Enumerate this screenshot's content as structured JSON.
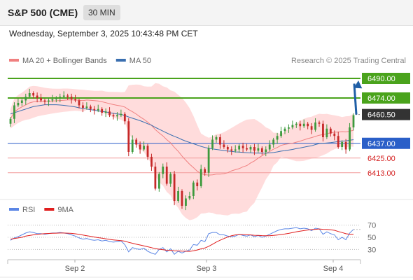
{
  "header": {
    "title": "S&P 500 (CME)",
    "interval": "30 MIN"
  },
  "datetime": "Wednesday, September 3, 2025 10:43:48 PM CET",
  "credit": "Research © 2025 Trading Central",
  "colors": {
    "up": "#3d9a3d",
    "down": "#c62828",
    "ma20": "#f08080",
    "ma50": "#3a6fb0",
    "band": "#ffd6d6",
    "green_line": "#4aa31c",
    "blue_line": "#2a5fc8",
    "red_line": "#f29c9c",
    "rsi": "#5b86e5",
    "rsi_ma": "#e01e1e",
    "arrow": "#1f5fa6"
  },
  "chart_data": [
    {
      "type": "candlestick",
      "legend": [
        {
          "label": "MA 20 + Bollinger Bands",
          "color": "#f08080"
        },
        {
          "label": "MA 50",
          "color": "#3a6fb0"
        }
      ],
      "x_ticks": [
        "Sep 2",
        "Sep 3",
        "Sep 4"
      ],
      "y_range": [
        6394,
        6498
      ],
      "levels": [
        {
          "label": "6490.00",
          "value": 6490.0,
          "kind": "resistance"
        },
        {
          "label": "6474.00",
          "value": 6474.0,
          "kind": "resistance"
        },
        {
          "label": "6460.50",
          "value": 6460.5,
          "kind": "last"
        },
        {
          "label": "6437.00",
          "value": 6437.0,
          "kind": "pivot"
        },
        {
          "label": "6425.00",
          "value": 6425.0,
          "kind": "support"
        },
        {
          "label": "6413.00",
          "value": 6413.0,
          "kind": "support"
        }
      ],
      "forecast_arrow": {
        "from": 6460.5,
        "to": 6490.0
      },
      "closes": [
        6457,
        6468,
        6470,
        6472,
        6475,
        6478,
        6476,
        6474,
        6472,
        6471,
        6472,
        6473,
        6474,
        6475,
        6476,
        6475,
        6473,
        6472,
        6468,
        6466,
        6467,
        6465,
        6464,
        6465,
        6462,
        6463,
        6460,
        6459,
        6460,
        6461,
        6455,
        6430,
        6440,
        6436,
        6432,
        6435,
        6426,
        6418,
        6400,
        6412,
        6418,
        6404,
        6412,
        6390,
        6398,
        6386,
        6392,
        6394,
        6405,
        6402,
        6416,
        6413,
        6433,
        6440,
        6442,
        6436,
        6434,
        6432,
        6431,
        6432,
        6435,
        6433,
        6432,
        6434,
        6431,
        6433,
        6430,
        6432,
        6436,
        6440,
        6443,
        6447,
        6449,
        6450,
        6452,
        6453,
        6451,
        6453,
        6451,
        6448,
        6454,
        6453,
        6442,
        6449,
        6445,
        6443,
        6434,
        6438,
        6432,
        6450,
        6460
      ],
      "ma50": [
        6461,
        6462,
        6463,
        6464,
        6465,
        6466,
        6467,
        6467.5,
        6468,
        6468.5,
        6468.5,
        6468.5,
        6468.5,
        6468.3,
        6468,
        6467.6,
        6467.2,
        6466.7,
        6466,
        6465.5,
        6465,
        6464.5,
        6464,
        6463.5,
        6463,
        6462.6,
        6462,
        6461.5,
        6461,
        6460.6,
        6459.7,
        6458.5,
        6457.5,
        6456.5,
        6455.5,
        6454.3,
        6453,
        6451.8,
        6450,
        6448.5,
        6447,
        6445.5,
        6444,
        6442.7,
        6441.5,
        6440,
        6438.8,
        6437.7,
        6436.6,
        6435.6,
        6434.5,
        6433.6,
        6433,
        6432.4,
        6432,
        6431.6,
        6431.1,
        6430.7,
        6430.4,
        6430,
        6429.8,
        6429.6,
        6429.4,
        6429.2,
        6429.1,
        6429,
        6429,
        6429,
        6429.2,
        6429.5,
        6430,
        6430.6,
        6431,
        6431.5,
        6432,
        6432.7,
        6433.2,
        6433.9,
        6434.5,
        6435,
        6436,
        6436.8,
        6437,
        6437.3,
        6437.6,
        6438,
        6438.4,
        6438.8,
        6439,
        6439.5,
        6440
      ]
    },
    {
      "type": "line",
      "legend": [
        {
          "label": "RSI",
          "color": "#5b86e5"
        },
        {
          "label": "9MA",
          "color": "#e01e1e"
        }
      ],
      "y_ticks": [
        70,
        50,
        30
      ],
      "y_range": [
        20,
        80
      ],
      "series": [
        {
          "name": "RSI",
          "values": [
            45,
            49,
            51,
            54,
            57,
            59,
            58,
            56,
            56,
            55,
            56,
            57,
            57,
            58,
            57,
            56,
            54,
            52,
            49,
            47,
            48,
            46,
            45,
            46,
            44,
            45,
            43,
            42,
            43,
            44,
            38,
            26,
            33,
            31,
            30,
            32,
            27,
            24,
            22,
            30,
            33,
            26,
            31,
            22,
            27,
            24,
            27,
            29,
            38,
            37,
            45,
            43,
            56,
            58,
            58,
            54,
            54,
            52,
            51,
            52,
            55,
            53,
            52,
            54,
            51,
            53,
            50,
            52,
            55,
            58,
            61,
            63,
            64,
            64,
            65,
            66,
            64,
            65,
            64,
            61,
            65,
            64,
            55,
            59,
            56,
            54,
            46,
            50,
            46,
            57,
            63
          ]
        },
        {
          "name": "9MA",
          "values": [
            47,
            48,
            49,
            50,
            52,
            53,
            54,
            55,
            55.5,
            56,
            56.4,
            56.6,
            56.8,
            57,
            57,
            56.8,
            56.5,
            55.8,
            54.9,
            53.8,
            52.7,
            51.6,
            50.5,
            49.4,
            48.6,
            47.6,
            46.5,
            45.7,
            45,
            44.5,
            43.6,
            41.7,
            40.2,
            38.6,
            37.3,
            35.9,
            34.4,
            32.9,
            31.4,
            30.4,
            29.5,
            28.7,
            28.5,
            27.8,
            27.5,
            27.2,
            27,
            26.8,
            27.9,
            29.1,
            31,
            32.3,
            35.1,
            38.6,
            42.2,
            45.2,
            47.9,
            50.5,
            52.6,
            53.9,
            54.5,
            54.5,
            54.1,
            53.9,
            53.3,
            53.2,
            52.8,
            52.6,
            52.7,
            53.1,
            53.8,
            54.6,
            55.4,
            56.5,
            57.9,
            59.1,
            60.1,
            61.1,
            62,
            62.7,
            63.2,
            63.7,
            63.1,
            62.9,
            62.4,
            61.5,
            59.6,
            57.8,
            55.9,
            55.1,
            55.2
          ]
        }
      ]
    }
  ]
}
